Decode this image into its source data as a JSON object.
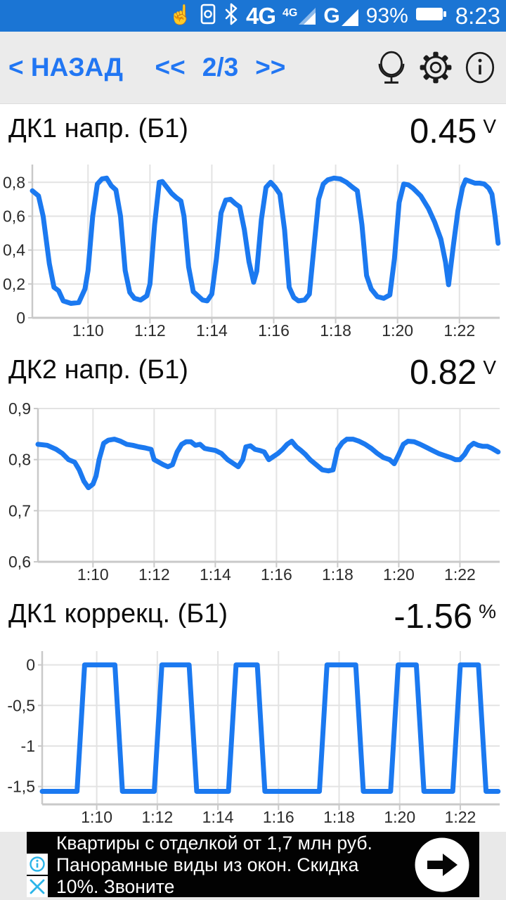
{
  "status_bar": {
    "bg_color": "#1b75d4",
    "touch_glyph": "☝",
    "network_type": "4G",
    "signal1_label": "4G",
    "signal2_label": "G",
    "battery_percent": "93%",
    "clock": "8:23"
  },
  "nav_bar": {
    "back_label": "< НАЗАД",
    "prev_label": "<<",
    "page_indicator": "2/3",
    "next_label": ">>",
    "accent_color": "#2176f3",
    "icons": [
      "mirror-icon",
      "gear-icon",
      "info-icon"
    ]
  },
  "panels": [
    {
      "title": "ДК1 напр. (Б1)",
      "value": "0.45",
      "unit": "V"
    },
    {
      "title": "ДК2 напр. (Б1)",
      "value": "0.82",
      "unit": "V"
    },
    {
      "title": "ДК1 коррекц. (Б1)",
      "value": "-1.56",
      "unit": "%"
    }
  ],
  "theme": {
    "line_color": "#1b79f0",
    "grid_color": "#e3e3e3",
    "axis_color": "#c9c9c9",
    "tick_text_color": "#2b2b2b"
  },
  "chart_data": [
    {
      "type": "line",
      "title": "ДК1 напр. (Б1)",
      "ylabel": "V",
      "current_value": 0.45,
      "xlim": [
        68.2,
        83.3
      ],
      "ylim": [
        0,
        0.905
      ],
      "grid": true,
      "xticks": [
        {
          "v": 70,
          "label": "1:10"
        },
        {
          "v": 72,
          "label": "1:12"
        },
        {
          "v": 74,
          "label": "1:14"
        },
        {
          "v": 76,
          "label": "1:16"
        },
        {
          "v": 78,
          "label": "1:18"
        },
        {
          "v": 80,
          "label": "1:20"
        },
        {
          "v": 82,
          "label": "1:22"
        }
      ],
      "yticks": [
        {
          "v": 0.8,
          "label": "0,8"
        },
        {
          "v": 0.6,
          "label": "0,6"
        },
        {
          "v": 0.4,
          "label": "0,4"
        },
        {
          "v": 0.2,
          "label": "0,2"
        },
        {
          "v": 0,
          "label": "0"
        }
      ],
      "series": [
        {
          "name": "ДК1 напр. (Б1)",
          "points": [
            [
              68.2,
              0.75
            ],
            [
              68.4,
              0.72
            ],
            [
              68.55,
              0.6
            ],
            [
              68.75,
              0.32
            ],
            [
              68.9,
              0.18
            ],
            [
              69.05,
              0.16
            ],
            [
              69.2,
              0.1
            ],
            [
              69.45,
              0.085
            ],
            [
              69.7,
              0.09
            ],
            [
              69.9,
              0.17
            ],
            [
              70.0,
              0.28
            ],
            [
              70.15,
              0.6
            ],
            [
              70.3,
              0.79
            ],
            [
              70.45,
              0.82
            ],
            [
              70.6,
              0.825
            ],
            [
              70.75,
              0.78
            ],
            [
              70.9,
              0.755
            ],
            [
              71.05,
              0.6
            ],
            [
              71.2,
              0.28
            ],
            [
              71.35,
              0.15
            ],
            [
              71.5,
              0.115
            ],
            [
              71.7,
              0.105
            ],
            [
              71.9,
              0.13
            ],
            [
              72.0,
              0.2
            ],
            [
              72.15,
              0.55
            ],
            [
              72.3,
              0.8
            ],
            [
              72.4,
              0.805
            ],
            [
              72.55,
              0.77
            ],
            [
              72.7,
              0.735
            ],
            [
              72.85,
              0.71
            ],
            [
              73.0,
              0.69
            ],
            [
              73.1,
              0.6
            ],
            [
              73.25,
              0.3
            ],
            [
              73.4,
              0.155
            ],
            [
              73.55,
              0.13
            ],
            [
              73.7,
              0.105
            ],
            [
              73.85,
              0.1
            ],
            [
              74.0,
              0.14
            ],
            [
              74.15,
              0.35
            ],
            [
              74.3,
              0.62
            ],
            [
              74.45,
              0.695
            ],
            [
              74.6,
              0.7
            ],
            [
              74.75,
              0.675
            ],
            [
              74.9,
              0.655
            ],
            [
              75.05,
              0.52
            ],
            [
              75.2,
              0.33
            ],
            [
              75.35,
              0.21
            ],
            [
              75.45,
              0.275
            ],
            [
              75.6,
              0.58
            ],
            [
              75.75,
              0.77
            ],
            [
              75.9,
              0.8
            ],
            [
              76.05,
              0.77
            ],
            [
              76.2,
              0.73
            ],
            [
              76.35,
              0.52
            ],
            [
              76.5,
              0.18
            ],
            [
              76.65,
              0.12
            ],
            [
              76.8,
              0.1
            ],
            [
              77.0,
              0.105
            ],
            [
              77.15,
              0.14
            ],
            [
              77.3,
              0.42
            ],
            [
              77.45,
              0.7
            ],
            [
              77.6,
              0.79
            ],
            [
              77.75,
              0.815
            ],
            [
              77.95,
              0.825
            ],
            [
              78.15,
              0.82
            ],
            [
              78.35,
              0.8
            ],
            [
              78.55,
              0.77
            ],
            [
              78.7,
              0.75
            ],
            [
              78.85,
              0.55
            ],
            [
              79.0,
              0.25
            ],
            [
              79.15,
              0.17
            ],
            [
              79.35,
              0.125
            ],
            [
              79.55,
              0.115
            ],
            [
              79.75,
              0.135
            ],
            [
              79.9,
              0.35
            ],
            [
              80.05,
              0.68
            ],
            [
              80.2,
              0.79
            ],
            [
              80.35,
              0.785
            ],
            [
              80.5,
              0.765
            ],
            [
              80.75,
              0.72
            ],
            [
              81.0,
              0.645
            ],
            [
              81.2,
              0.565
            ],
            [
              81.4,
              0.465
            ],
            [
              81.55,
              0.33
            ],
            [
              81.65,
              0.195
            ],
            [
              81.8,
              0.42
            ],
            [
              81.95,
              0.63
            ],
            [
              82.1,
              0.77
            ],
            [
              82.2,
              0.815
            ],
            [
              82.35,
              0.805
            ],
            [
              82.5,
              0.795
            ],
            [
              82.65,
              0.795
            ],
            [
              82.8,
              0.79
            ],
            [
              82.95,
              0.765
            ],
            [
              83.05,
              0.73
            ],
            [
              83.15,
              0.6
            ],
            [
              83.25,
              0.44
            ]
          ]
        }
      ]
    },
    {
      "type": "line",
      "title": "ДК2 напр. (Б1)",
      "ylabel": "V",
      "current_value": 0.82,
      "xlim": [
        68.2,
        83.3
      ],
      "ylim": [
        0.6,
        0.9
      ],
      "grid": true,
      "xticks": [
        {
          "v": 70,
          "label": "1:10"
        },
        {
          "v": 72,
          "label": "1:12"
        },
        {
          "v": 74,
          "label": "1:14"
        },
        {
          "v": 76,
          "label": "1:16"
        },
        {
          "v": 78,
          "label": "1:18"
        },
        {
          "v": 80,
          "label": "1:20"
        },
        {
          "v": 82,
          "label": "1:22"
        }
      ],
      "yticks": [
        {
          "v": 0.9,
          "label": "0,9"
        },
        {
          "v": 0.8,
          "label": "0,8"
        },
        {
          "v": 0.7,
          "label": "0,7"
        },
        {
          "v": 0.6,
          "label": "0,6"
        }
      ],
      "series": [
        {
          "name": "ДК2 напр. (Б1)",
          "points": [
            [
              68.2,
              0.83
            ],
            [
              68.5,
              0.828
            ],
            [
              68.8,
              0.82
            ],
            [
              69.0,
              0.812
            ],
            [
              69.2,
              0.8
            ],
            [
              69.4,
              0.795
            ],
            [
              69.55,
              0.78
            ],
            [
              69.7,
              0.758
            ],
            [
              69.85,
              0.745
            ],
            [
              70.0,
              0.752
            ],
            [
              70.1,
              0.768
            ],
            [
              70.2,
              0.8
            ],
            [
              70.35,
              0.832
            ],
            [
              70.5,
              0.838
            ],
            [
              70.7,
              0.84
            ],
            [
              70.9,
              0.836
            ],
            [
              71.1,
              0.83
            ],
            [
              71.3,
              0.828
            ],
            [
              71.5,
              0.825
            ],
            [
              71.7,
              0.823
            ],
            [
              71.9,
              0.82
            ],
            [
              72.0,
              0.8
            ],
            [
              72.15,
              0.795
            ],
            [
              72.3,
              0.79
            ],
            [
              72.45,
              0.786
            ],
            [
              72.6,
              0.79
            ],
            [
              72.75,
              0.815
            ],
            [
              72.9,
              0.83
            ],
            [
              73.05,
              0.835
            ],
            [
              73.2,
              0.835
            ],
            [
              73.35,
              0.828
            ],
            [
              73.5,
              0.83
            ],
            [
              73.65,
              0.822
            ],
            [
              73.8,
              0.82
            ],
            [
              74.0,
              0.818
            ],
            [
              74.2,
              0.812
            ],
            [
              74.4,
              0.8
            ],
            [
              74.6,
              0.792
            ],
            [
              74.75,
              0.786
            ],
            [
              74.9,
              0.8
            ],
            [
              75.0,
              0.825
            ],
            [
              75.15,
              0.827
            ],
            [
              75.3,
              0.82
            ],
            [
              75.45,
              0.818
            ],
            [
              75.6,
              0.815
            ],
            [
              75.75,
              0.8
            ],
            [
              75.9,
              0.806
            ],
            [
              76.05,
              0.812
            ],
            [
              76.2,
              0.82
            ],
            [
              76.35,
              0.83
            ],
            [
              76.5,
              0.836
            ],
            [
              76.65,
              0.825
            ],
            [
              76.8,
              0.818
            ],
            [
              76.95,
              0.81
            ],
            [
              77.1,
              0.8
            ],
            [
              77.3,
              0.79
            ],
            [
              77.5,
              0.78
            ],
            [
              77.7,
              0.778
            ],
            [
              77.85,
              0.78
            ],
            [
              78.0,
              0.82
            ],
            [
              78.15,
              0.833
            ],
            [
              78.3,
              0.84
            ],
            [
              78.5,
              0.84
            ],
            [
              78.7,
              0.836
            ],
            [
              78.9,
              0.83
            ],
            [
              79.1,
              0.822
            ],
            [
              79.3,
              0.812
            ],
            [
              79.5,
              0.804
            ],
            [
              79.7,
              0.8
            ],
            [
              79.85,
              0.792
            ],
            [
              80.0,
              0.81
            ],
            [
              80.15,
              0.83
            ],
            [
              80.3,
              0.836
            ],
            [
              80.5,
              0.835
            ],
            [
              80.7,
              0.83
            ],
            [
              80.9,
              0.824
            ],
            [
              81.1,
              0.818
            ],
            [
              81.3,
              0.812
            ],
            [
              81.5,
              0.808
            ],
            [
              81.7,
              0.804
            ],
            [
              81.85,
              0.8
            ],
            [
              82.0,
              0.8
            ],
            [
              82.15,
              0.81
            ],
            [
              82.3,
              0.825
            ],
            [
              82.45,
              0.832
            ],
            [
              82.6,
              0.828
            ],
            [
              82.75,
              0.826
            ],
            [
              82.9,
              0.826
            ],
            [
              83.05,
              0.822
            ],
            [
              83.25,
              0.815
            ]
          ]
        }
      ]
    },
    {
      "type": "line",
      "title": "ДК1 коррекц. (Б1)",
      "ylabel": "%",
      "current_value": -1.56,
      "xlim": [
        68.2,
        83.3
      ],
      "ylim": [
        -1.72,
        0.17
      ],
      "grid": true,
      "xticks": [
        {
          "v": 70,
          "label": "1:10"
        },
        {
          "v": 72,
          "label": "1:12"
        },
        {
          "v": 74,
          "label": "1:14"
        },
        {
          "v": 76,
          "label": "1:16"
        },
        {
          "v": 78,
          "label": "1:18"
        },
        {
          "v": 80,
          "label": "1:20"
        },
        {
          "v": 82,
          "label": "1:22"
        }
      ],
      "yticks": [
        {
          "v": 0,
          "label": "0"
        },
        {
          "v": -0.5,
          "label": "-0,5"
        },
        {
          "v": -1,
          "label": "-1"
        },
        {
          "v": -1.5,
          "label": "-1,5"
        }
      ],
      "series": [
        {
          "name": "ДК1 коррекц. (Б1)",
          "points": [
            [
              68.2,
              -1.56
            ],
            [
              69.35,
              -1.56
            ],
            [
              69.6,
              0
            ],
            [
              70.6,
              0
            ],
            [
              70.85,
              -1.56
            ],
            [
              71.9,
              -1.56
            ],
            [
              72.15,
              0
            ],
            [
              73.05,
              0
            ],
            [
              73.3,
              -1.56
            ],
            [
              74.35,
              -1.56
            ],
            [
              74.6,
              0
            ],
            [
              75.3,
              0
            ],
            [
              75.55,
              -1.56
            ],
            [
              77.35,
              -1.56
            ],
            [
              77.6,
              0
            ],
            [
              78.55,
              0
            ],
            [
              78.8,
              -1.56
            ],
            [
              79.7,
              -1.56
            ],
            [
              79.95,
              0
            ],
            [
              80.55,
              0
            ],
            [
              80.8,
              -1.56
            ],
            [
              81.75,
              -1.56
            ],
            [
              82.0,
              0
            ],
            [
              82.6,
              0
            ],
            [
              82.85,
              -1.56
            ],
            [
              83.25,
              -1.56
            ]
          ]
        }
      ]
    }
  ],
  "ad_banner": {
    "lines": [
      "Квартиры с отделкой от 1,7 млн руб.",
      "Панорамные виды из окон. Скидка",
      "10%. Звоните"
    ],
    "bg_color": "#020202",
    "accent_color": "#2bb5e9"
  }
}
